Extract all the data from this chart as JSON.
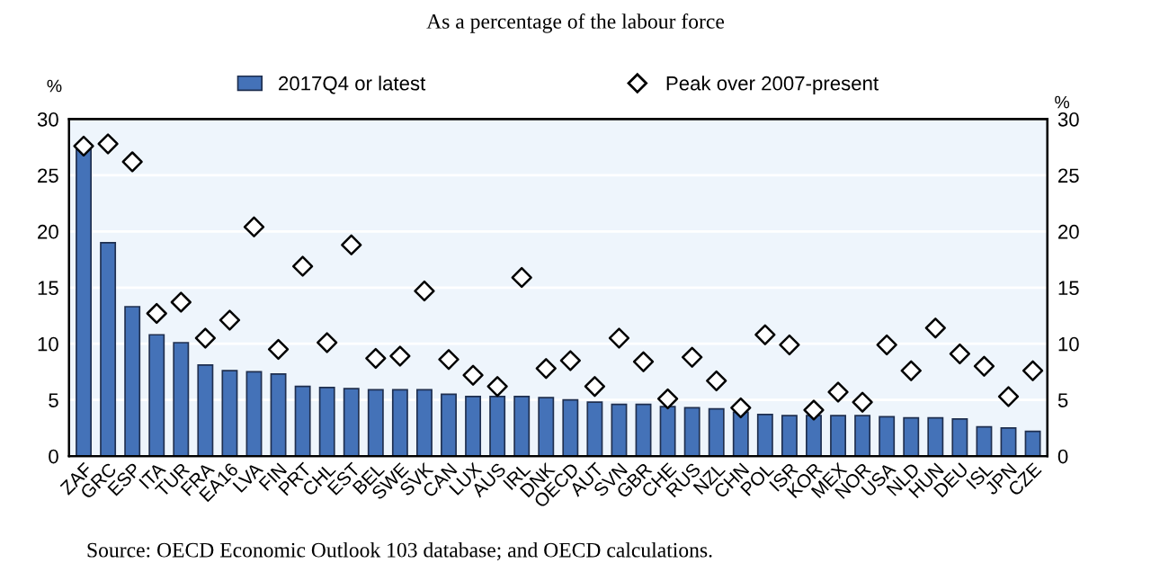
{
  "chart_data": {
    "type": "bar",
    "title": "As a percentage of the labour force",
    "ylabel": "%",
    "y2label": "%",
    "categories": [
      "ZAF",
      "GRC",
      "ESP",
      "ITA",
      "TUR",
      "FRA",
      "EA16",
      "LVA",
      "FIN",
      "PRT",
      "CHL",
      "EST",
      "BEL",
      "SWE",
      "SVK",
      "CAN",
      "LUX",
      "AUS",
      "IRL",
      "DNK",
      "OECD",
      "AUT",
      "SVN",
      "GBR",
      "CHE",
      "RUS",
      "NZL",
      "CHN",
      "POL",
      "ISR",
      "KOR",
      "MEX",
      "NOR",
      "USA",
      "NLD",
      "HUN",
      "DEU",
      "ISL",
      "JPN",
      "CZE"
    ],
    "series": [
      {
        "name": "2017Q4 or latest",
        "color": "#4472b8",
        "values": [
          27.5,
          19.0,
          13.3,
          10.8,
          10.1,
          8.1,
          7.6,
          7.5,
          7.3,
          6.2,
          6.1,
          6.0,
          5.9,
          5.9,
          5.9,
          5.5,
          5.3,
          5.3,
          5.3,
          5.2,
          5.0,
          4.8,
          4.6,
          4.6,
          4.4,
          4.3,
          4.2,
          3.9,
          3.7,
          3.6,
          3.6,
          3.6,
          3.6,
          3.5,
          3.4,
          3.4,
          3.3,
          2.6,
          2.5,
          2.2
        ]
      },
      {
        "name": "Peak over 2007-present",
        "type": "scatter",
        "marker": "diamond",
        "color": "#ffffff",
        "values": [
          27.6,
          27.8,
          26.2,
          12.7,
          13.7,
          10.5,
          12.1,
          20.4,
          9.5,
          16.9,
          10.1,
          18.8,
          8.7,
          8.9,
          14.7,
          8.6,
          7.2,
          6.2,
          15.9,
          7.8,
          8.5,
          6.2,
          10.5,
          8.4,
          5.1,
          8.8,
          6.7,
          4.3,
          10.8,
          9.9,
          4.1,
          5.7,
          4.8,
          9.9,
          7.6,
          11.4,
          9.1,
          8.0,
          5.3,
          7.6
        ]
      }
    ],
    "ylim": [
      0,
      30
    ],
    "yticks": [
      0,
      5,
      10,
      15,
      20,
      25,
      30
    ],
    "y2lim": [
      0,
      30
    ],
    "y2ticks": [
      0,
      5,
      10,
      15,
      20,
      25,
      30
    ],
    "grid": "y",
    "legend": "top",
    "annotations": [
      "Source: OECD Economic Outlook 103 database; and OECD calculations."
    ]
  }
}
